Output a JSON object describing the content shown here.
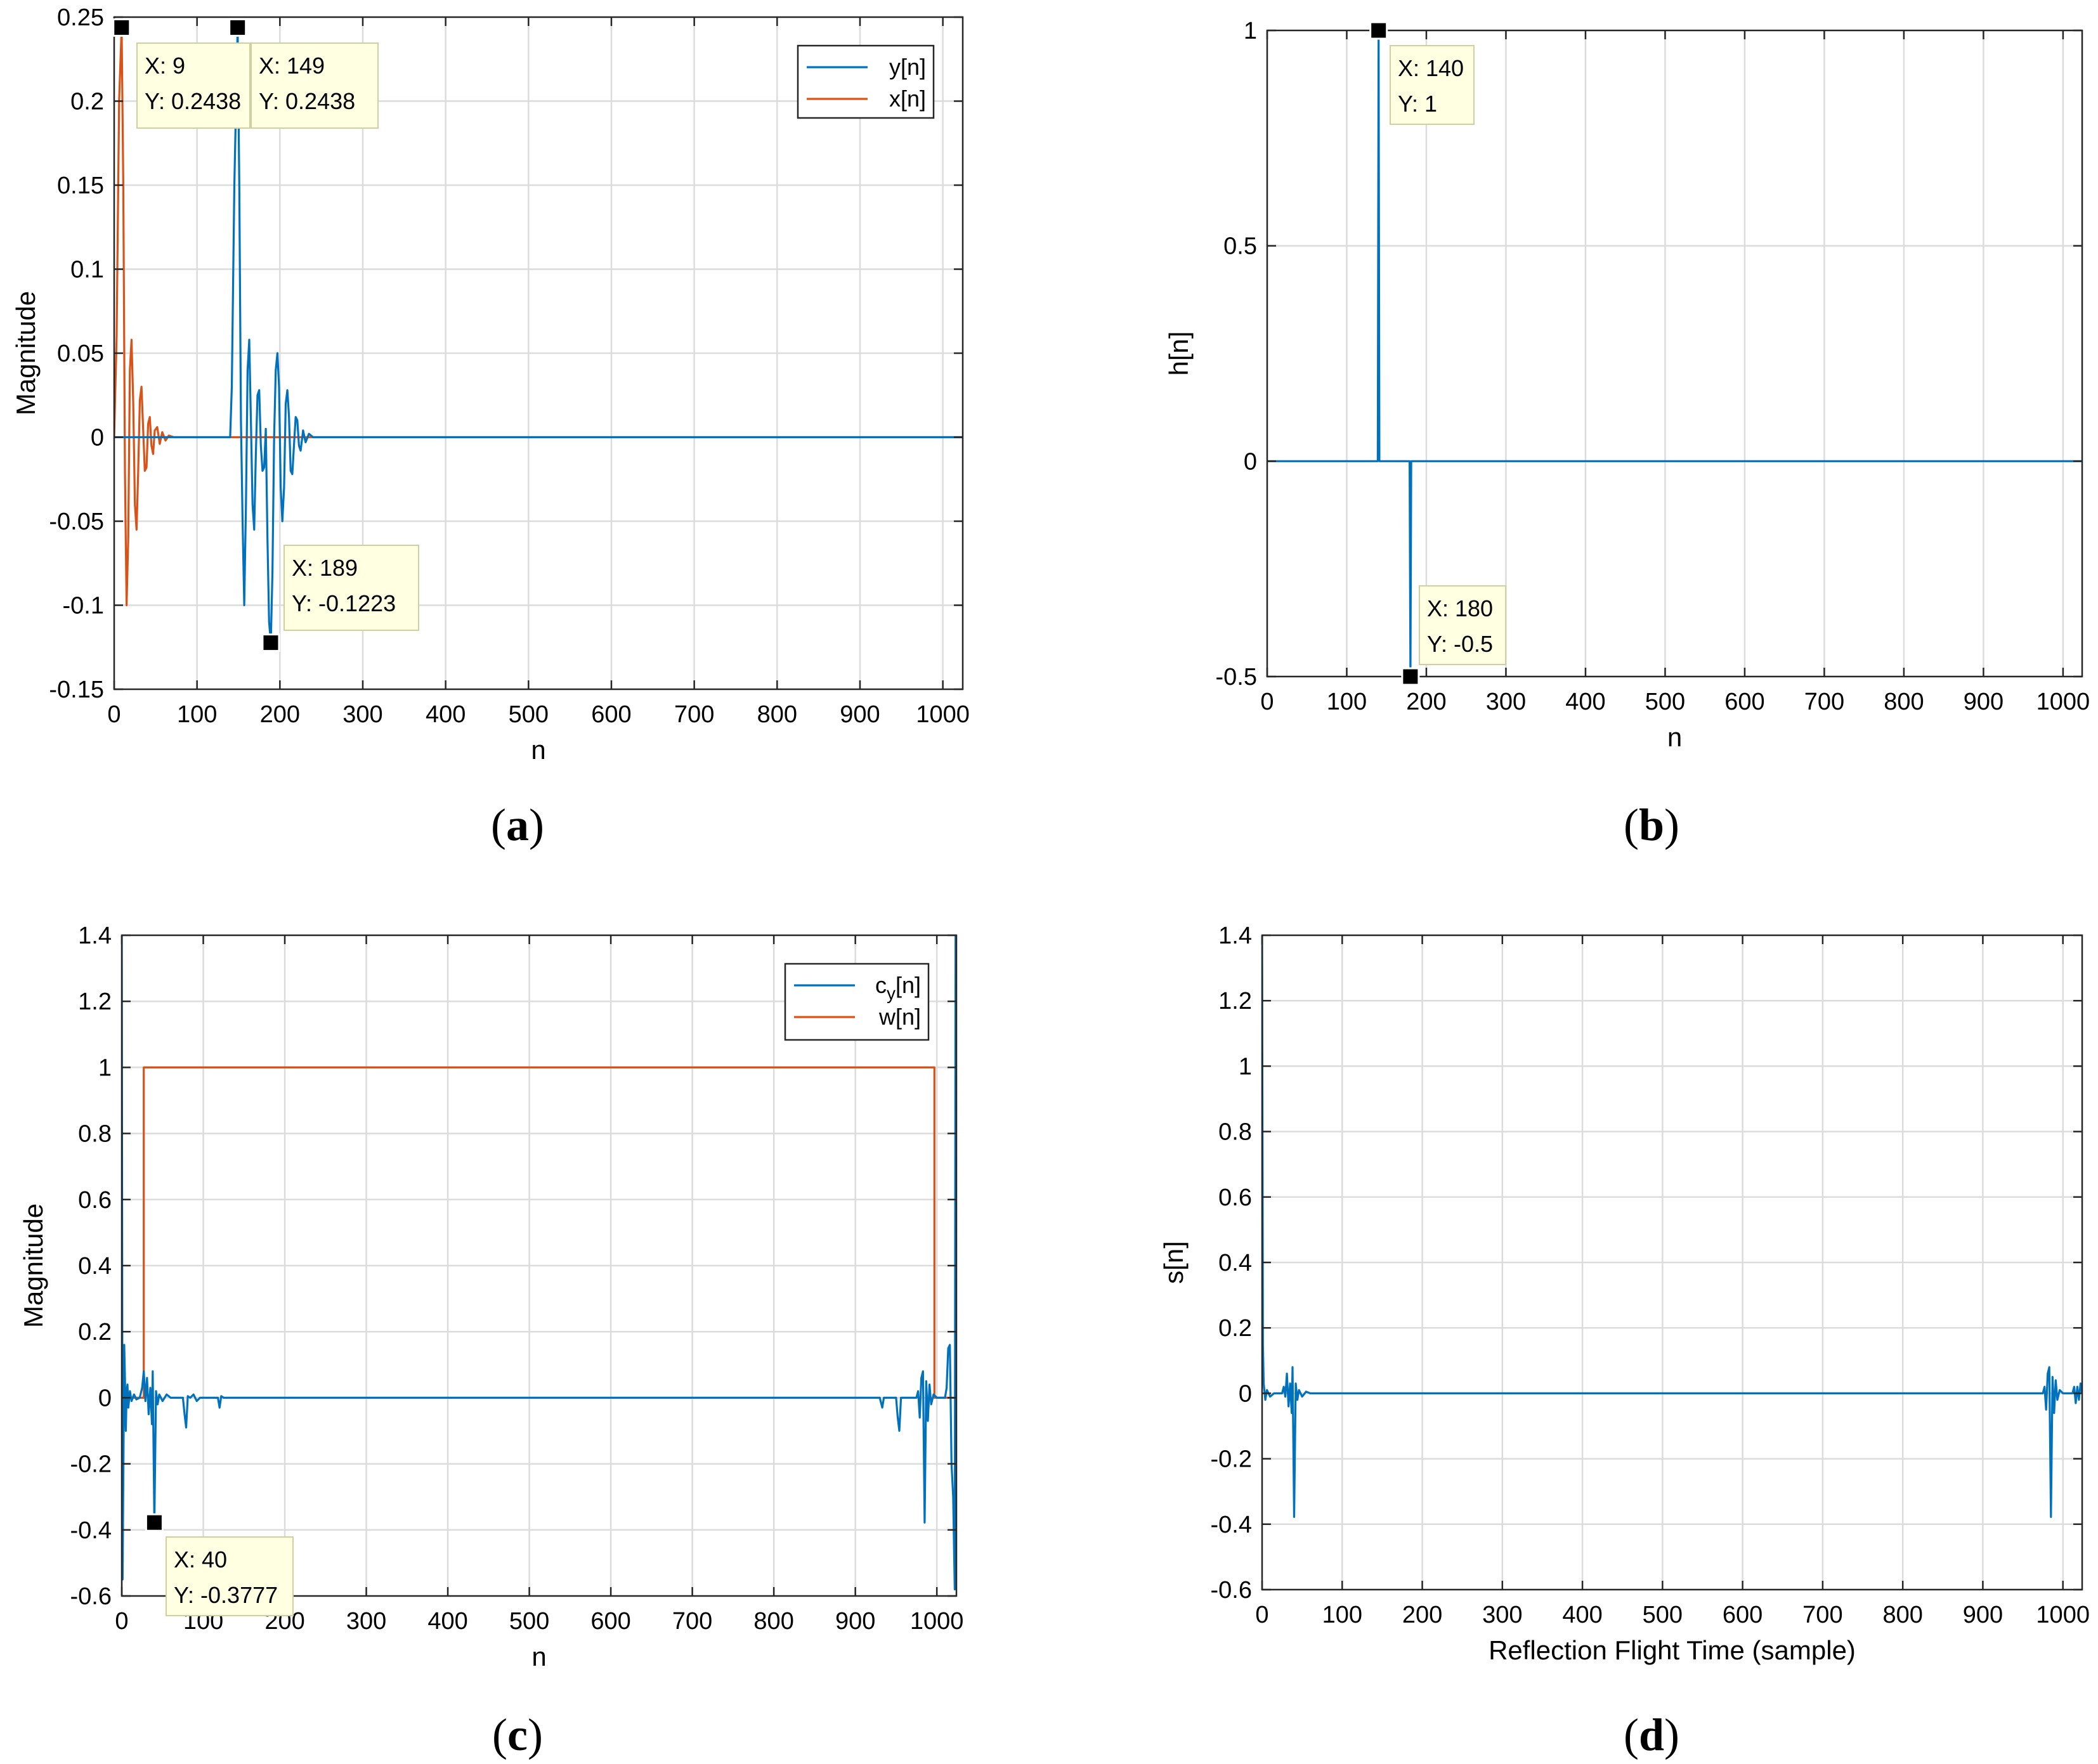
{
  "figure": {
    "panel_labels": [
      "a",
      "b",
      "c",
      "d"
    ]
  },
  "colors": {
    "blue": "#0072BD",
    "orange": "#D95319",
    "grid": "#DCDCDC",
    "axis": "#262626",
    "tip_bg": "#FFFFE1",
    "tip_border": "#CFCFA0"
  },
  "chart_data": [
    {
      "id": "a",
      "type": "line",
      "xlabel": "n",
      "ylabel": "Magnitude",
      "xlim": [
        0,
        1024
      ],
      "ylim": [
        -0.15,
        0.25
      ],
      "xticks": [
        0,
        100,
        200,
        300,
        400,
        500,
        600,
        700,
        800,
        900,
        1000
      ],
      "yticks": [
        -0.15,
        -0.1,
        -0.05,
        0,
        0.05,
        0.1,
        0.15,
        0.2,
        0.25
      ],
      "ytick_labels": [
        "-0.15",
        "-0.1",
        "-0.05",
        "0",
        "0.05",
        "0.1",
        "0.15",
        "0.2",
        "0.25"
      ],
      "legend": {
        "position": "top-right",
        "entries": [
          {
            "label": "y[n]",
            "series": "y"
          },
          {
            "label": "x[n]",
            "series": "x"
          }
        ]
      },
      "series": [
        {
          "name": "x",
          "color": "orange",
          "points": [
            [
              0,
              0
            ],
            [
              3,
              0.06
            ],
            [
              6,
              0.2
            ],
            [
              9,
              0.2438
            ],
            [
              11,
              0.15
            ],
            [
              13,
              -0.02
            ],
            [
              15,
              -0.1
            ],
            [
              17,
              -0.06
            ],
            [
              19,
              0.04
            ],
            [
              21,
              0.058
            ],
            [
              23,
              0.02
            ],
            [
              25,
              -0.04
            ],
            [
              27,
              -0.055
            ],
            [
              29,
              -0.02
            ],
            [
              31,
              0.022
            ],
            [
              33,
              0.03
            ],
            [
              35,
              0.005
            ],
            [
              37,
              -0.02
            ],
            [
              39,
              -0.018
            ],
            [
              41,
              0.008
            ],
            [
              43,
              0.012
            ],
            [
              45,
              -0.005
            ],
            [
              47,
              -0.01
            ],
            [
              49,
              0.004
            ],
            [
              52,
              0.006
            ],
            [
              55,
              -0.004
            ],
            [
              58,
              0.003
            ],
            [
              62,
              -0.002
            ],
            [
              66,
              0.001
            ],
            [
              72,
              0
            ],
            [
              1024,
              0
            ]
          ]
        },
        {
          "name": "y",
          "color": "blue",
          "points": [
            [
              0,
              0
            ],
            [
              140,
              0
            ],
            [
              142,
              0.03
            ],
            [
              145,
              0.15
            ],
            [
              149,
              0.2438
            ],
            [
              151,
              0.15
            ],
            [
              153,
              0.01
            ],
            [
              155,
              -0.05
            ],
            [
              157,
              -0.1
            ],
            [
              159,
              -0.04
            ],
            [
              161,
              0.04
            ],
            [
              163,
              0.058
            ],
            [
              165,
              0.01
            ],
            [
              167,
              -0.04
            ],
            [
              169,
              -0.055
            ],
            [
              171,
              -0.01
            ],
            [
              173,
              0.025
            ],
            [
              175,
              0.028
            ],
            [
              177,
              -0.005
            ],
            [
              179,
              -0.02
            ],
            [
              181,
              -0.018
            ],
            [
              183,
              0.005
            ],
            [
              185,
              -0.06
            ],
            [
              187,
              -0.11
            ],
            [
              189,
              -0.1223
            ],
            [
              191,
              -0.08
            ],
            [
              193,
              0.0
            ],
            [
              195,
              0.04
            ],
            [
              197,
              0.05
            ],
            [
              199,
              0.03
            ],
            [
              201,
              -0.03
            ],
            [
              203,
              -0.05
            ],
            [
              205,
              -0.03
            ],
            [
              207,
              0.02
            ],
            [
              209,
              0.028
            ],
            [
              211,
              0.012
            ],
            [
              213,
              -0.02
            ],
            [
              215,
              -0.022
            ],
            [
              217,
              -0.005
            ],
            [
              219,
              0.012
            ],
            [
              221,
              0.01
            ],
            [
              223,
              -0.005
            ],
            [
              225,
              -0.008
            ],
            [
              228,
              0.004
            ],
            [
              231,
              -0.003
            ],
            [
              235,
              0.002
            ],
            [
              240,
              0
            ],
            [
              1024,
              0
            ]
          ]
        }
      ],
      "datatips": [
        {
          "x": 9,
          "y": 0.2438,
          "x_label": "X: 9",
          "y_label": "Y: 0.2438"
        },
        {
          "x": 149,
          "y": 0.2438,
          "x_label": "X: 149",
          "y_label": "Y: 0.2438"
        },
        {
          "x": 189,
          "y": -0.1223,
          "x_label": "X: 189",
          "y_label": "Y: -0.1223"
        }
      ]
    },
    {
      "id": "b",
      "type": "line",
      "xlabel": "n",
      "ylabel": "h[n]",
      "xlim": [
        0,
        1024
      ],
      "ylim": [
        -0.5,
        1
      ],
      "xticks": [
        0,
        100,
        200,
        300,
        400,
        500,
        600,
        700,
        800,
        900,
        1000
      ],
      "yticks": [
        -0.5,
        0,
        0.5,
        1
      ],
      "ytick_labels": [
        "-0.5",
        "0",
        "0.5",
        "1"
      ],
      "series": [
        {
          "name": "h",
          "color": "blue",
          "points": [
            [
              0,
              0
            ],
            [
              139,
              0
            ],
            [
              140,
              1
            ],
            [
              141,
              0
            ],
            [
              179,
              0
            ],
            [
              180,
              -0.5
            ],
            [
              181,
              0
            ],
            [
              1024,
              0
            ]
          ]
        }
      ],
      "datatips": [
        {
          "x": 140,
          "y": 1,
          "x_label": "X: 140",
          "y_label": "Y: 1"
        },
        {
          "x": 180,
          "y": -0.5,
          "x_label": "X: 180",
          "y_label": "Y: -0.5"
        }
      ]
    },
    {
      "id": "c",
      "type": "line",
      "xlabel": "n",
      "ylabel": "Magnitude",
      "xlim": [
        0,
        1024
      ],
      "ylim": [
        -0.6,
        1.4
      ],
      "xticks": [
        0,
        100,
        200,
        300,
        400,
        500,
        600,
        700,
        800,
        900,
        1000
      ],
      "yticks": [
        -0.6,
        -0.4,
        -0.2,
        0,
        0.2,
        0.4,
        0.6,
        0.8,
        1,
        1.2,
        1.4
      ],
      "ytick_labels": [
        "-0.6",
        "-0.4",
        "-0.2",
        "0",
        "0.2",
        "0.4",
        "0.6",
        "0.8",
        "1",
        "1.2",
        "1.4"
      ],
      "legend": {
        "position": "top-right",
        "entries": [
          {
            "label": "c",
            "sub": "y",
            "suffix": "[n]",
            "series": "c"
          },
          {
            "label": "w[n]",
            "series": "w"
          }
        ]
      },
      "series": [
        {
          "name": "w",
          "color": "orange",
          "points": [
            [
              0,
              0
            ],
            [
              27,
              0
            ],
            [
              27,
              1
            ],
            [
              997,
              1
            ],
            [
              997,
              0
            ],
            [
              1024,
              0
            ]
          ]
        },
        {
          "name": "c",
          "color": "blue",
          "points": [
            [
              0,
              1.4
            ],
            [
              1,
              -0.55
            ],
            [
              2,
              -0.2
            ],
            [
              3,
              0.16
            ],
            [
              4,
              0.05
            ],
            [
              5,
              -0.1
            ],
            [
              6,
              0.02
            ],
            [
              7,
              0.04
            ],
            [
              8,
              -0.03
            ],
            [
              10,
              0.02
            ],
            [
              12,
              -0.01
            ],
            [
              15,
              0.01
            ],
            [
              18,
              -0.005
            ],
            [
              22,
              0.0
            ],
            [
              25,
              0.03
            ],
            [
              27,
              0.08
            ],
            [
              29,
              -0.01
            ],
            [
              31,
              0.06
            ],
            [
              33,
              -0.05
            ],
            [
              35,
              0.03
            ],
            [
              37,
              -0.08
            ],
            [
              38,
              0.08
            ],
            [
              40,
              -0.3777
            ],
            [
              42,
              0.02
            ],
            [
              44,
              -0.02
            ],
            [
              46,
              0.01
            ],
            [
              50,
              -0.01
            ],
            [
              55,
              0.01
            ],
            [
              60,
              0
            ],
            [
              75,
              0
            ],
            [
              77,
              -0.05
            ],
            [
              79,
              -0.09
            ],
            [
              81,
              0.005
            ],
            [
              84,
              0
            ],
            [
              88,
              0.01
            ],
            [
              92,
              -0.01
            ],
            [
              96,
              0
            ],
            [
              118,
              0
            ],
            [
              120,
              -0.03
            ],
            [
              122,
              0.005
            ],
            [
              125,
              0
            ],
            [
              930,
              0
            ],
            [
              933,
              -0.03
            ],
            [
              935,
              0
            ],
            [
              950,
              0
            ],
            [
              952,
              -0.06
            ],
            [
              954,
              -0.1
            ],
            [
              956,
              0.0
            ],
            [
              960,
              0
            ],
            [
              975,
              0
            ],
            [
              977,
              0.02
            ],
            [
              979,
              -0.06
            ],
            [
              981,
              0.06
            ],
            [
              983,
              0.08
            ],
            [
              985,
              -0.3777
            ],
            [
              987,
              0.05
            ],
            [
              989,
              -0.07
            ],
            [
              991,
              0.04
            ],
            [
              993,
              -0.02
            ],
            [
              996,
              0.01
            ],
            [
              1000,
              0
            ],
            [
              1010,
              0
            ],
            [
              1012,
              0.03
            ],
            [
              1014,
              0.15
            ],
            [
              1016,
              0.16
            ],
            [
              1018,
              -0.2
            ],
            [
              1020,
              -0.3
            ],
            [
              1022,
              -0.58
            ],
            [
              1023,
              1.4
            ]
          ]
        }
      ],
      "datatips": [
        {
          "x": 40,
          "y": -0.3777,
          "x_label": "X: 40",
          "y_label": "Y: -0.3777"
        }
      ]
    },
    {
      "id": "d",
      "type": "line",
      "xlabel": "Reflection Flight Time (sample)",
      "ylabel": "s[n]",
      "xlim": [
        0,
        1024
      ],
      "ylim": [
        -0.6,
        1.4
      ],
      "xticks": [
        0,
        100,
        200,
        300,
        400,
        500,
        600,
        700,
        800,
        900,
        1000
      ],
      "yticks": [
        -0.6,
        -0.4,
        -0.2,
        0,
        0.2,
        0.4,
        0.6,
        0.8,
        1,
        1.2,
        1.4
      ],
      "ytick_labels": [
        "-0.6",
        "-0.4",
        "-0.2",
        "0",
        "0.2",
        "0.4",
        "0.6",
        "0.8",
        "1",
        "1.2",
        "1.4"
      ],
      "series": [
        {
          "name": "s",
          "color": "blue",
          "points": [
            [
              0,
              1.4
            ],
            [
              1,
              0.15
            ],
            [
              2,
              0.03
            ],
            [
              4,
              -0.02
            ],
            [
              6,
              0.01
            ],
            [
              10,
              -0.01
            ],
            [
              15,
              0
            ],
            [
              25,
              0
            ],
            [
              27,
              0.02
            ],
            [
              29,
              -0.01
            ],
            [
              31,
              0.06
            ],
            [
              33,
              -0.04
            ],
            [
              35,
              0.03
            ],
            [
              37,
              -0.06
            ],
            [
              38,
              0.08
            ],
            [
              40,
              -0.3777
            ],
            [
              42,
              0.03
            ],
            [
              44,
              -0.02
            ],
            [
              46,
              0.01
            ],
            [
              50,
              -0.01
            ],
            [
              55,
              0.005
            ],
            [
              60,
              0
            ],
            [
              975,
              0
            ],
            [
              977,
              0.02
            ],
            [
              979,
              -0.05
            ],
            [
              981,
              0.06
            ],
            [
              983,
              0.08
            ],
            [
              985,
              -0.3777
            ],
            [
              987,
              0.05
            ],
            [
              989,
              -0.06
            ],
            [
              991,
              0.04
            ],
            [
              993,
              -0.02
            ],
            [
              996,
              0.01
            ],
            [
              1000,
              0
            ],
            [
              1012,
              0
            ],
            [
              1014,
              0.02
            ],
            [
              1016,
              -0.03
            ],
            [
              1018,
              0.02
            ],
            [
              1020,
              -0.02
            ],
            [
              1022,
              0.03
            ],
            [
              1024,
              0.0
            ]
          ]
        }
      ],
      "datatips": []
    }
  ]
}
